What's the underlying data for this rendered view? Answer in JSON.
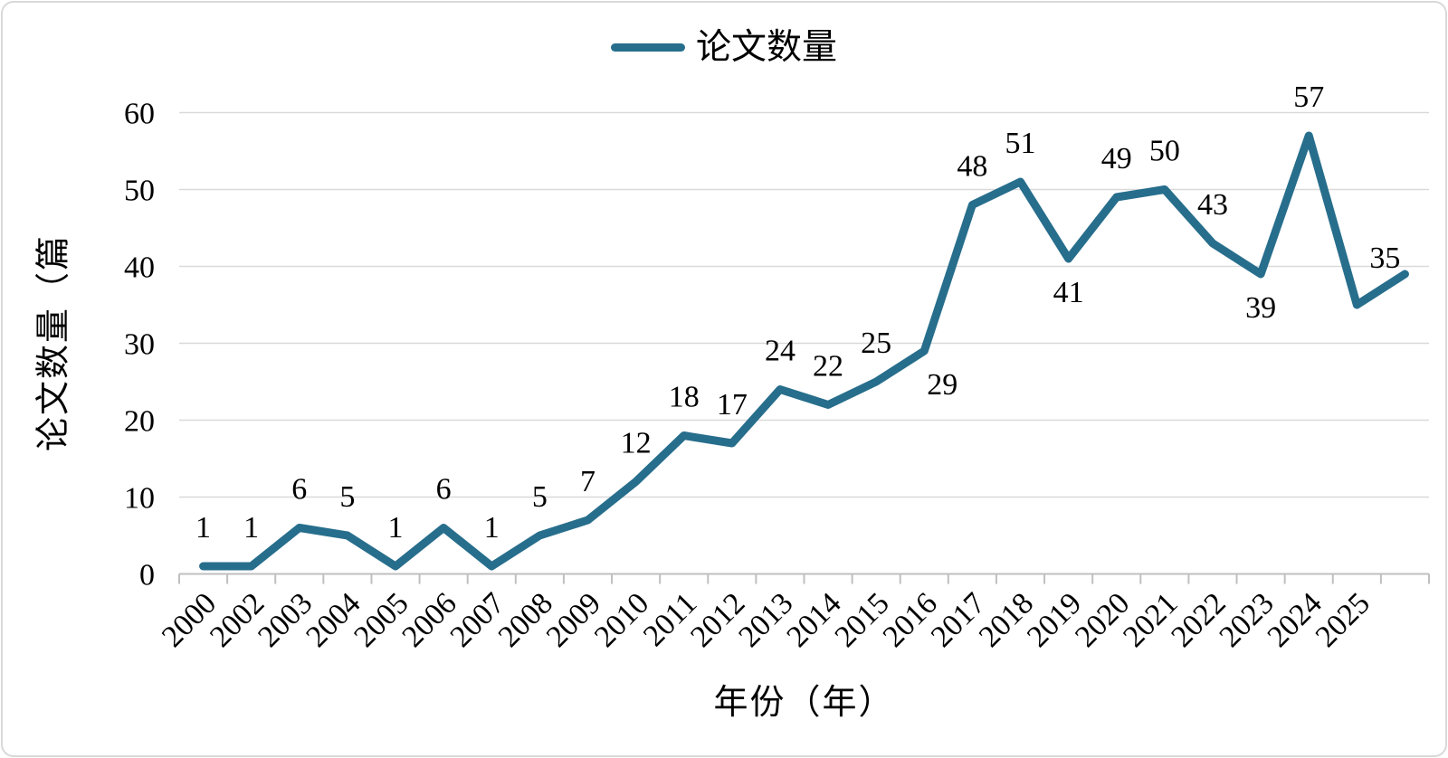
{
  "chart_data": {
    "type": "line",
    "title": "",
    "legend": {
      "label": "论文数量",
      "position": "top"
    },
    "x_axis": {
      "title": "年份（年）",
      "categories": [
        "2000",
        "2002",
        "2003",
        "2004",
        "2005",
        "2006",
        "2007",
        "2008",
        "2009",
        "2010",
        "2011",
        "2012",
        "2013",
        "2014",
        "2015",
        "2016",
        "2017",
        "2018",
        "2019",
        "2020",
        "2021",
        "2022",
        "2023",
        "2024",
        "2025"
      ]
    },
    "y_axis": {
      "title": "论文数量（篇",
      "min": 0,
      "max": 60,
      "tick_interval": 10,
      "tick_labels": [
        "0",
        "10",
        "20",
        "30",
        "40",
        "50",
        "60"
      ]
    },
    "series": [
      {
        "name": "论文数量",
        "values": [
          1,
          1,
          6,
          5,
          1,
          6,
          1,
          5,
          7,
          12,
          18,
          17,
          24,
          22,
          25,
          29,
          48,
          51,
          41,
          49,
          50,
          43,
          39,
          57,
          35
        ],
        "data_label_positions": [
          "above",
          "above",
          "above",
          "above",
          "above",
          "above",
          "above",
          "above",
          "above",
          "above",
          "above",
          "above",
          "above",
          "above",
          "above",
          "below-right",
          "above",
          "above",
          "below",
          "above",
          "above",
          "above",
          "below",
          "above",
          "above-right"
        ],
        "trailing_unlabeled_point": {
          "category": "",
          "value": 39
        }
      }
    ],
    "grid": "horizontal-only",
    "colors": {
      "line": "#276e8c",
      "gridline": "#d9d9d9",
      "axis": "#bfbfbf",
      "text": "#000000",
      "background": "#ffffff",
      "frame_border": "#d9d9d9"
    }
  }
}
